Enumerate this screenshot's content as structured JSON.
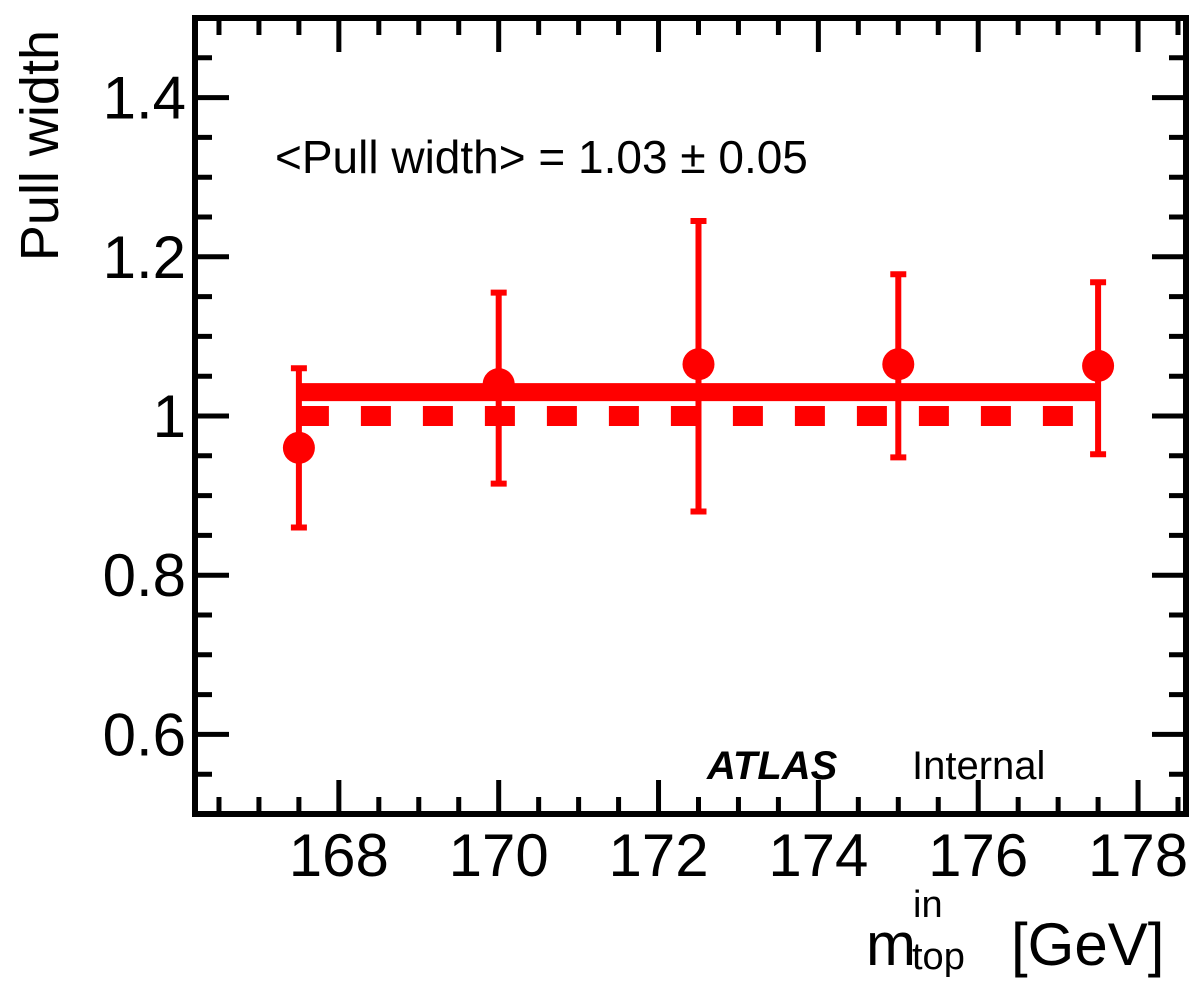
{
  "chart_data": {
    "type": "scatter",
    "title": "",
    "xlabel": "m",
    "xlabel_superscript": "in",
    "xlabel_subscript": "top",
    "xlabel_unit": "[GeV]",
    "ylabel": "Pull width",
    "xlim": [
      166.2,
      178.6
    ],
    "ylim": [
      0.5,
      1.5
    ],
    "x_ticks": [
      168,
      170,
      172,
      174,
      176,
      178
    ],
    "x_tick_labels": [
      "168",
      "170",
      "172",
      "174",
      "176",
      "178"
    ],
    "x_minor_step": 0.5,
    "y_ticks": [
      0.6,
      0.8,
      1.0,
      1.2,
      1.4
    ],
    "y_tick_labels": [
      "0.6",
      "0.8",
      "1",
      "1.2",
      "1.4"
    ],
    "y_minor_step": 0.05,
    "series": [
      {
        "name": "Pull width",
        "x": [
          167.5,
          170.0,
          172.5,
          175.0,
          177.5
        ],
        "y": [
          0.96,
          1.04,
          1.065,
          1.065,
          1.063
        ],
        "yerr_low": [
          0.86,
          0.915,
          0.88,
          0.948,
          0.952
        ],
        "yerr_high": [
          1.06,
          1.155,
          1.245,
          1.178,
          1.168
        ]
      }
    ],
    "fit_line": {
      "name": "Mean pull width",
      "x": [
        167.5,
        177.5
      ],
      "y": 1.03
    },
    "reference_line": {
      "name": "Unit width",
      "x": [
        167.5,
        177.5
      ],
      "y": 1.0
    },
    "annotations": {
      "mean_label": "<Pull width> = 1.03 ± 0.05",
      "experiment": "ATLAS",
      "status": "Internal"
    },
    "colors": {
      "data": "#ff0000",
      "axes": "#000000"
    }
  }
}
